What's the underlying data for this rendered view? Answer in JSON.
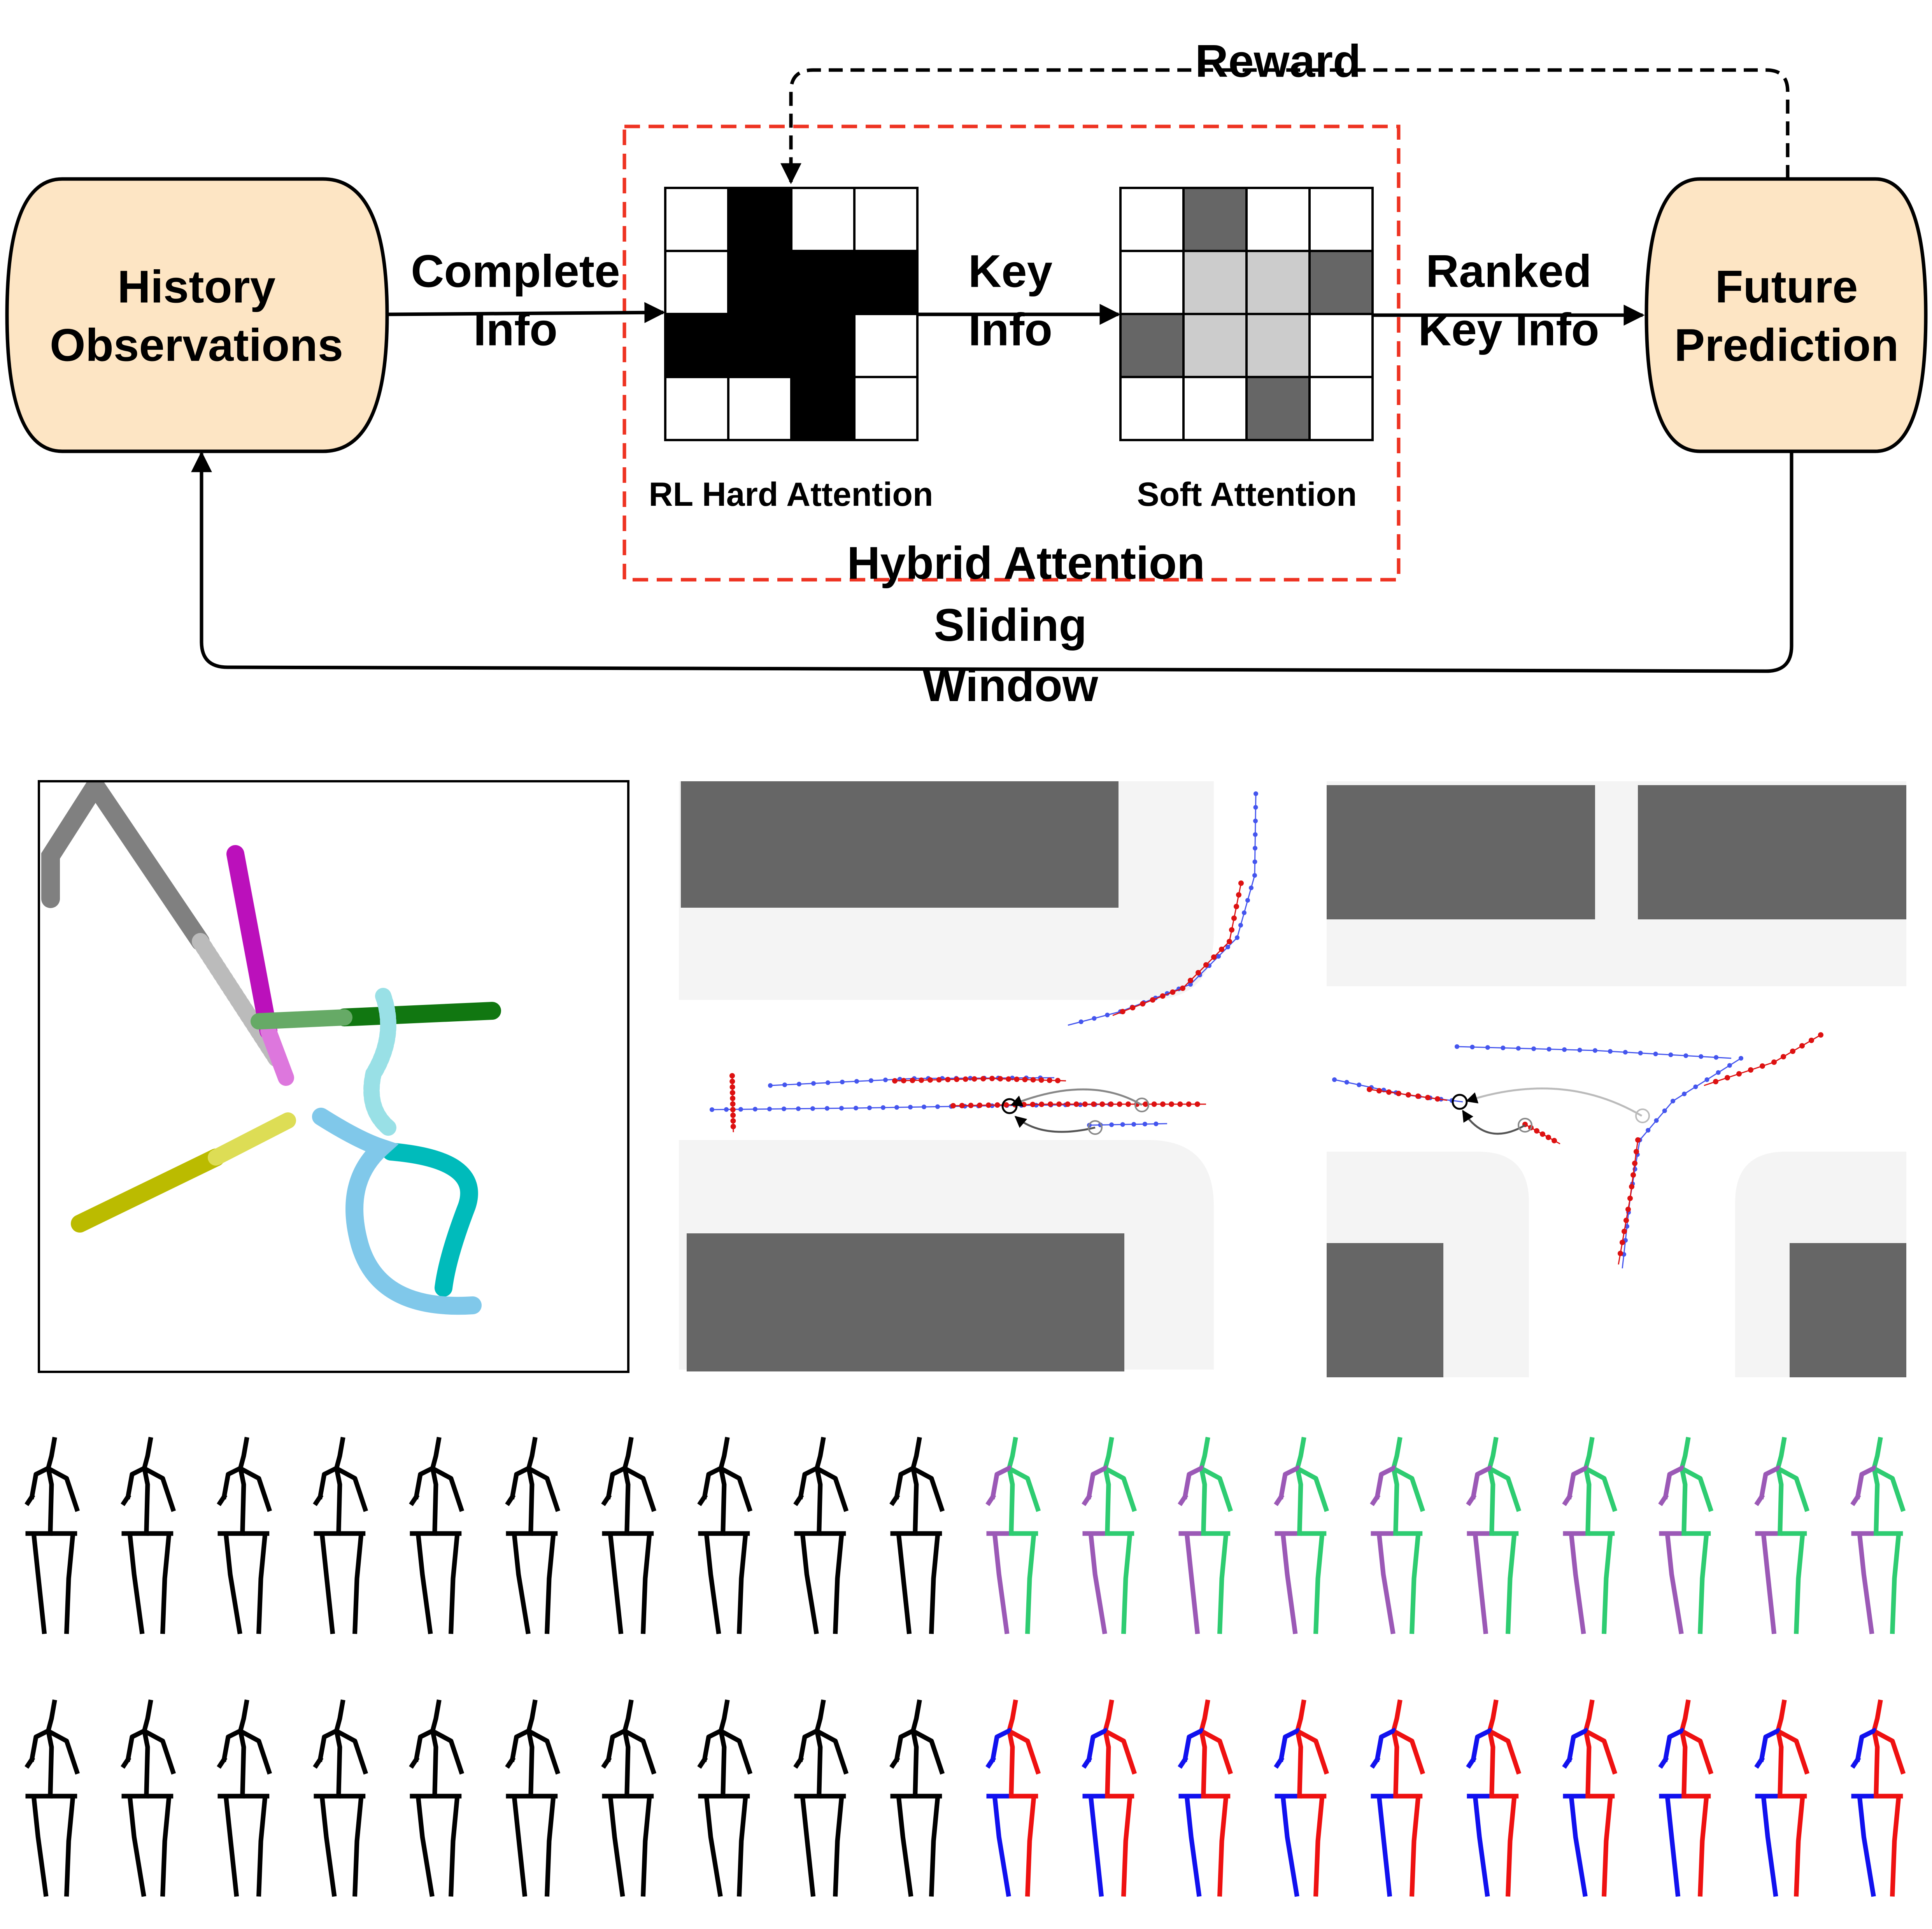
{
  "flow": {
    "history_label": "History\nObservations",
    "future_label": "Future\nPrediction",
    "edge_complete": "Complete\nInfo",
    "edge_key": "Key\nInfo",
    "edge_ranked": "Ranked\nKey Info",
    "edge_reward": "Reward",
    "edge_sliding": "Sliding\nWindow",
    "hard_caption": "RL Hard Attention",
    "soft_caption": "Soft Attention",
    "hybrid_caption": "Hybrid Attention"
  },
  "grids": {
    "hard": [
      [
        "#ffffff",
        "#000000",
        "#ffffff",
        "#ffffff"
      ],
      [
        "#ffffff",
        "#000000",
        "#000000",
        "#000000"
      ],
      [
        "#000000",
        "#000000",
        "#000000",
        "#ffffff"
      ],
      [
        "#ffffff",
        "#ffffff",
        "#000000",
        "#ffffff"
      ]
    ],
    "soft": [
      [
        "#ffffff",
        "#666666",
        "#ffffff",
        "#ffffff"
      ],
      [
        "#ffffff",
        "#cccccc",
        "#cccccc",
        "#666666"
      ],
      [
        "#666666",
        "#cccccc",
        "#cccccc",
        "#ffffff"
      ],
      [
        "#ffffff",
        "#ffffff",
        "#666666",
        "#ffffff"
      ]
    ]
  },
  "colors": {
    "node_fill": "#fde5c4",
    "hybrid_border": "#ee3322",
    "building": "#666666",
    "road": "#f2f2f2",
    "traj_red": "#dd1111",
    "traj_blue": "#4455ee",
    "pose_gt_left": "#9b59b6",
    "pose_gt_right": "#2ecc71",
    "pose_pred_left": "#1111ee",
    "pose_pred_right": "#ee1111",
    "pose_history": "#000000"
  },
  "pose_rows": {
    "history_count": 10,
    "future_count": 10
  }
}
